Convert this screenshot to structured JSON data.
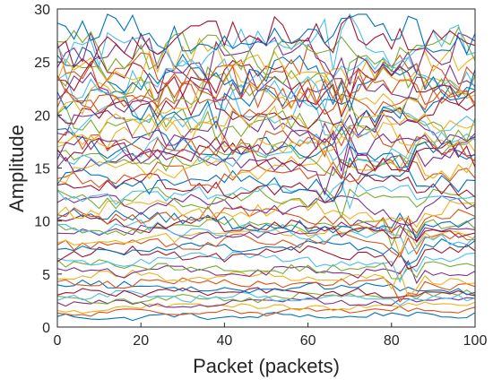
{
  "chart_data": {
    "type": "line",
    "title": "",
    "xlabel": "Packet (packets)",
    "ylabel": "Amplitude",
    "xlim": [
      0,
      100
    ],
    "ylim": [
      0,
      30
    ],
    "x_ticks": [
      "0",
      "20",
      "40",
      "60",
      "80",
      "100"
    ],
    "y_ticks": [
      "0",
      "5",
      "10",
      "15",
      "20",
      "25",
      "30"
    ],
    "grid": false,
    "legend": "none",
    "series_count": 60,
    "palette": [
      "#0072BD",
      "#D95319",
      "#EDB120",
      "#7E2F8E",
      "#77AC30",
      "#4DBEEE",
      "#A2142F"
    ],
    "x": [
      0,
      2,
      4,
      6,
      8,
      10,
      12,
      14,
      16,
      18,
      20,
      22,
      24,
      26,
      28,
      30,
      32,
      34,
      36,
      38,
      40,
      42,
      44,
      46,
      48,
      50,
      52,
      54,
      56,
      58,
      60,
      62,
      64,
      66,
      68,
      70,
      72,
      74,
      76,
      78,
      80,
      82,
      84,
      86,
      88,
      90,
      92,
      94,
      96,
      98,
      100
    ],
    "series_levels": [
      0.9,
      1.3,
      1.7,
      2.1,
      2.5,
      3.0,
      3.4,
      3.9,
      4.3,
      4.8,
      5.3,
      5.8,
      6.3,
      6.8,
      7.3,
      7.8,
      8.3,
      8.7,
      9.1,
      9.5,
      9.9,
      10.3,
      10.7,
      11.2,
      11.7,
      12.2,
      12.7,
      13.2,
      13.7,
      14.2,
      14.7,
      15.2,
      15.7,
      16.2,
      16.7,
      17.2,
      17.7,
      18.2,
      18.7,
      19.2,
      19.7,
      20.2,
      20.7,
      21.2,
      21.7,
      22.2,
      22.7,
      23.2,
      23.7,
      24.2,
      24.7,
      25.2,
      25.7,
      26.2,
      26.6,
      27.0,
      27.4,
      22.0,
      19.0,
      16.8
    ]
  }
}
